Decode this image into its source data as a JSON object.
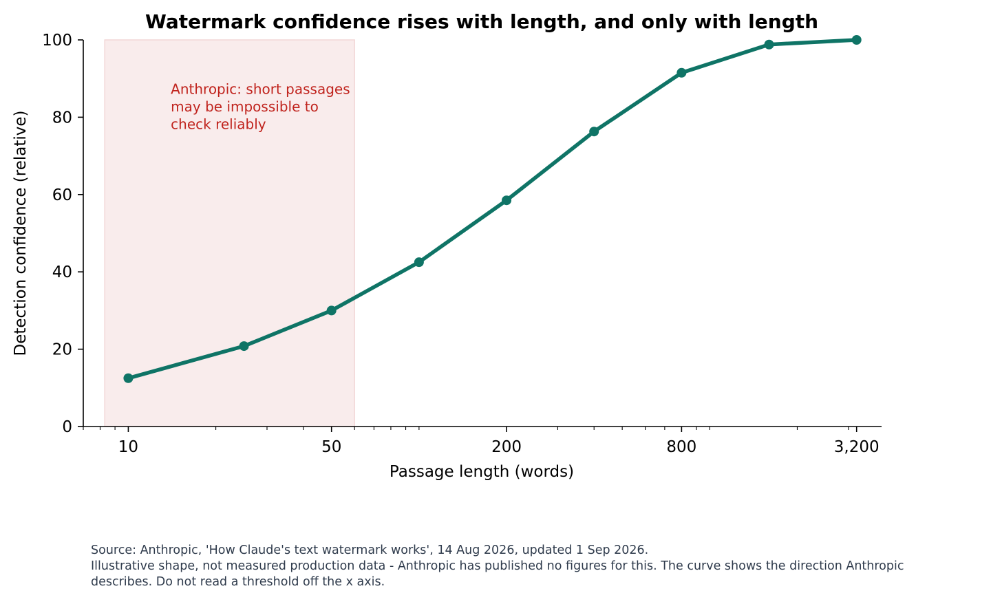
{
  "chart_data": {
    "type": "line",
    "title": "Watermark confidence rises with length, and only with length",
    "xlabel": "Passage length (words)",
    "ylabel": "Detection confidence (relative)",
    "x_scale": "log",
    "xlim": [
      7,
      3900
    ],
    "ylim": [
      0,
      100
    ],
    "x_ticks": [
      10,
      50,
      200,
      800,
      3200
    ],
    "x_tick_labels": [
      "10",
      "50",
      "200",
      "800",
      "3,200"
    ],
    "y_ticks": [
      0,
      20,
      40,
      60,
      80,
      100
    ],
    "y_tick_labels": [
      "0",
      "20",
      "40",
      "60",
      "80",
      "100"
    ],
    "grid": false,
    "legend": "none",
    "line_color": "#0f7466",
    "shaded_region": {
      "x_from": 8.3,
      "x_to": 60,
      "color": "#f9ecec"
    },
    "annotation": {
      "lines": [
        "Anthropic: short passages",
        "may be impossible to",
        "check reliably"
      ],
      "color": "#c0231d",
      "x": 14,
      "y": 86
    },
    "x": [
      10,
      25,
      50,
      100,
      200,
      400,
      800,
      1600,
      3200
    ],
    "values": [
      12.5,
      20.8,
      30.0,
      42.5,
      58.5,
      76.3,
      91.5,
      98.8,
      100.0
    ]
  },
  "footnote": {
    "source": "Source: Anthropic, 'How Claude's text watermark works', 14 Aug 2026, updated 1 Sep 2026.",
    "caveat_line1": "Illustrative shape, not measured production data - Anthropic has published no figures for this. The curve shows the direction Anthropic",
    "caveat_line2": "describes. Do not read a threshold off the x axis."
  }
}
